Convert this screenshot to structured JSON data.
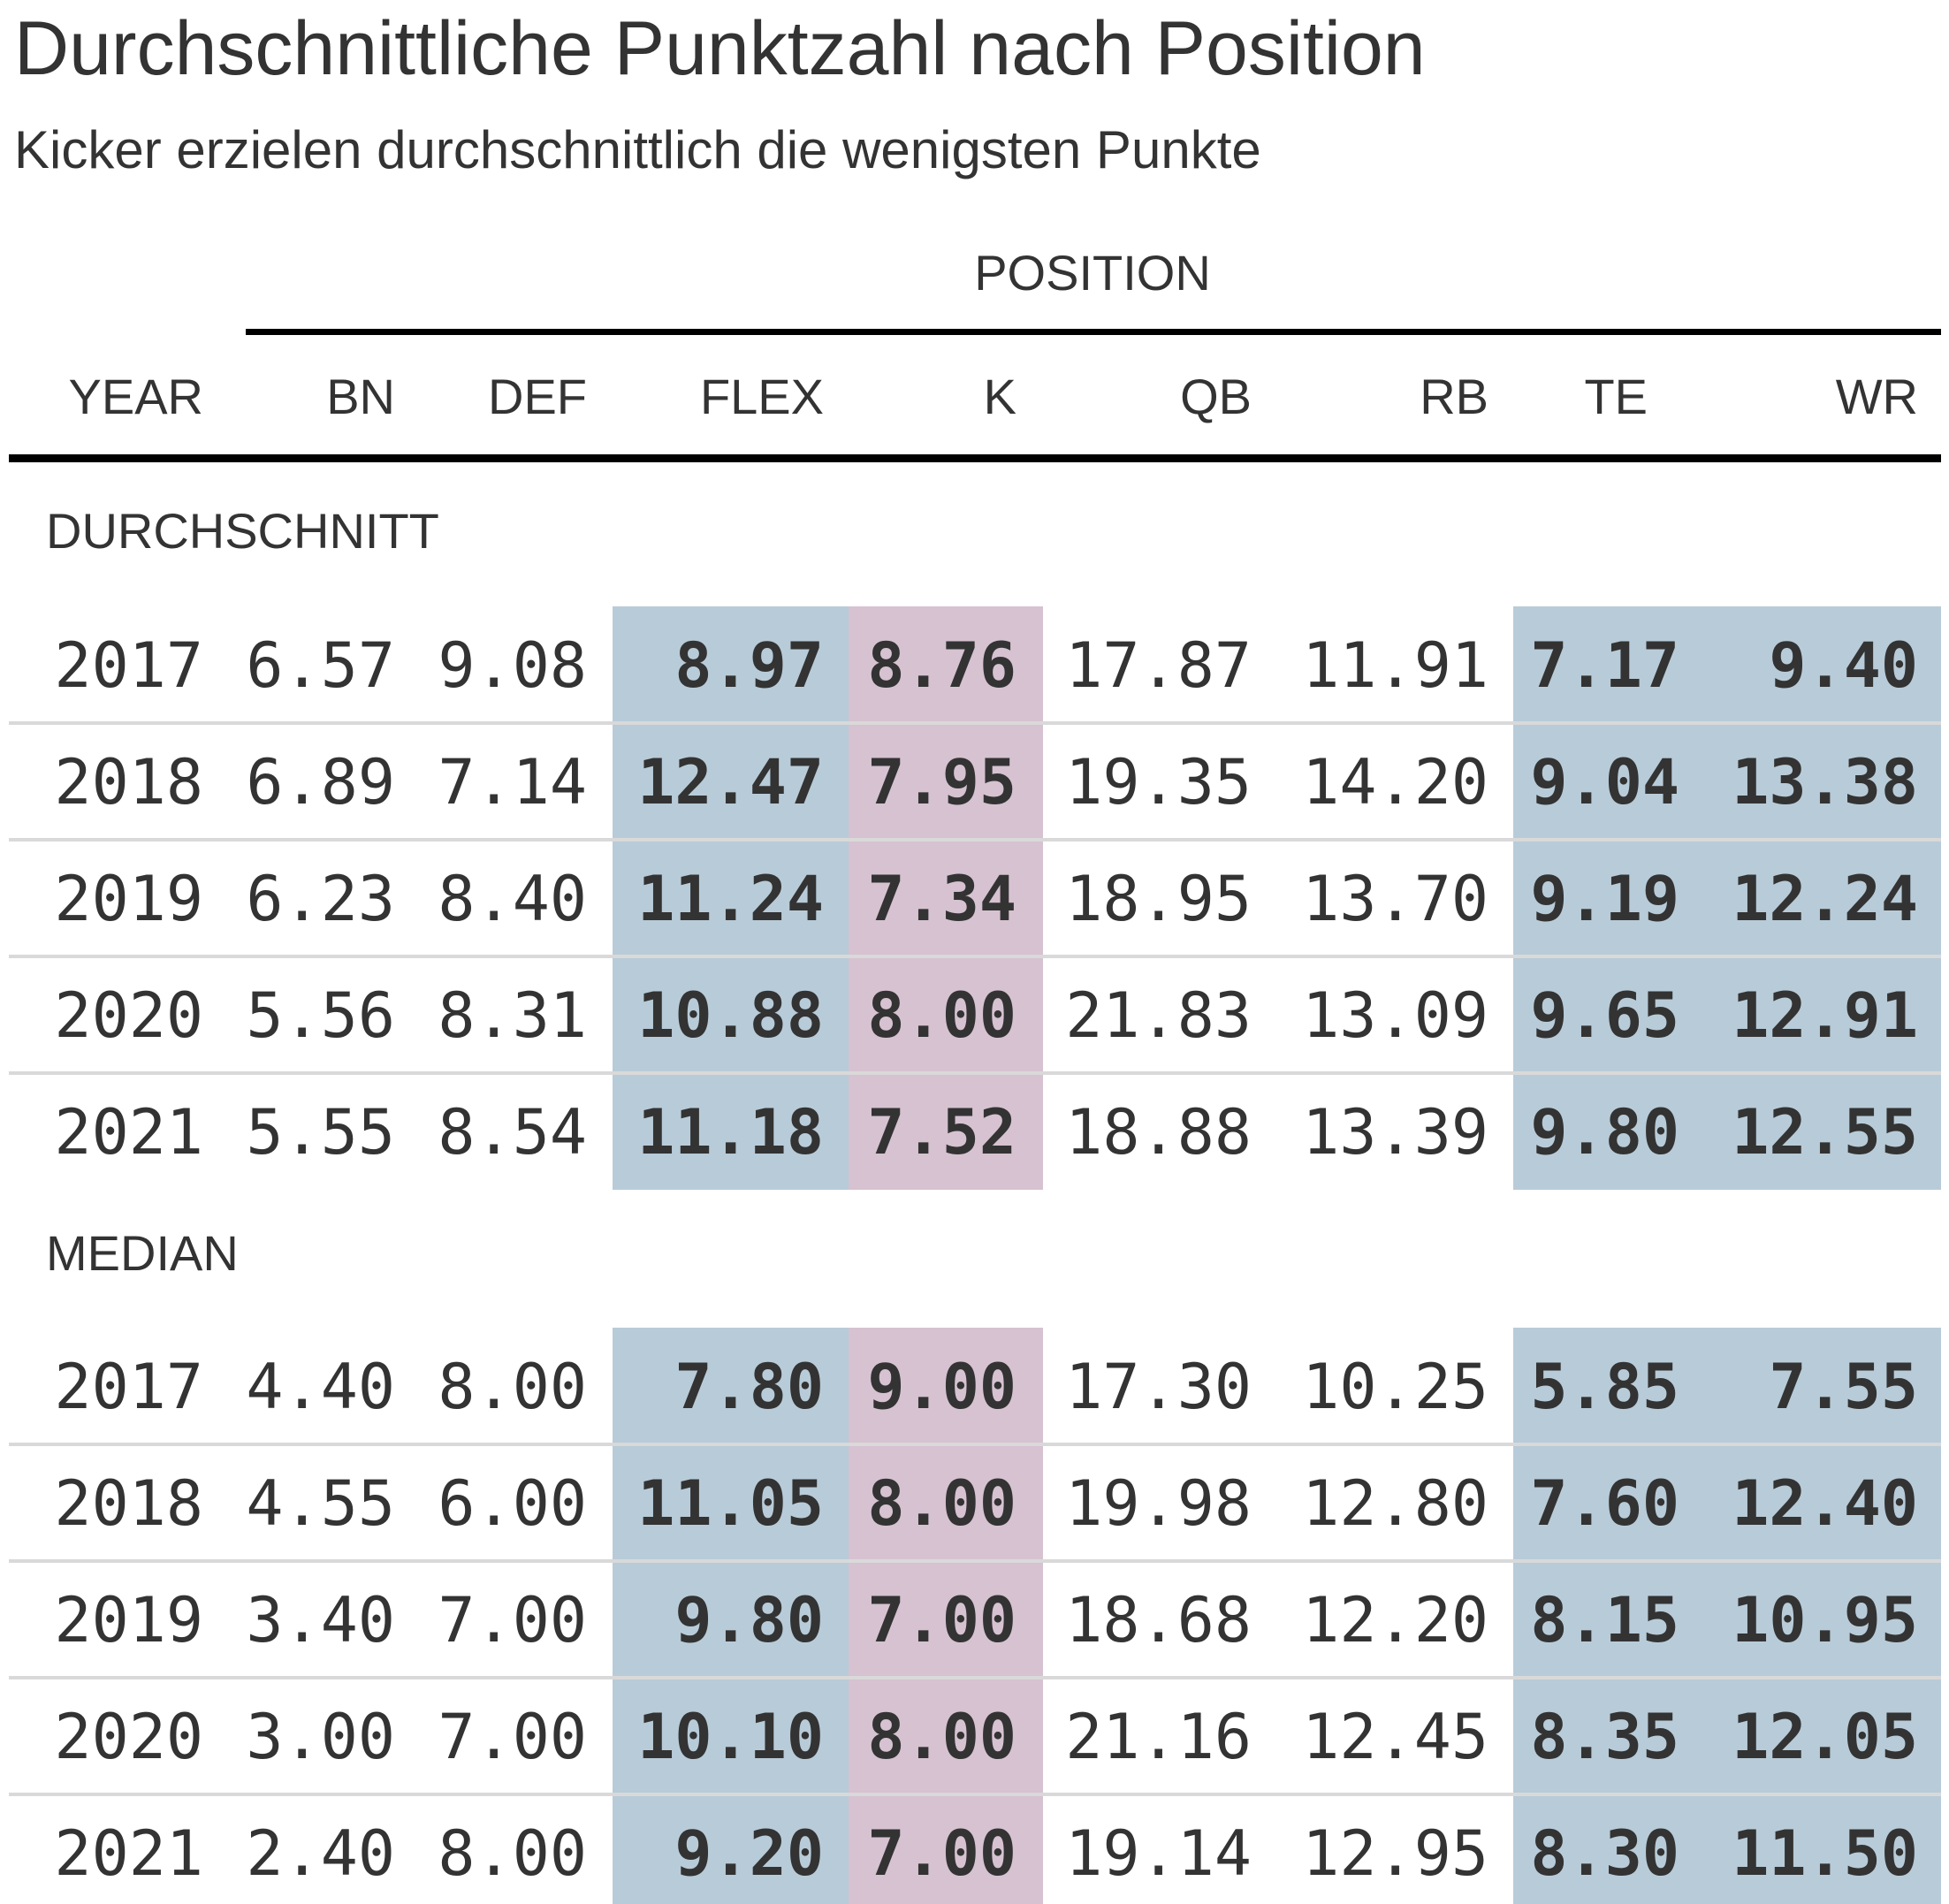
{
  "title": "Durchschnittliche Punktzahl nach Position",
  "subtitle": "Kicker erzielen durchschnittlich die wenigsten Punkte",
  "colors": {
    "text": "#333333",
    "highlight_blue": "#b8cbd8",
    "highlight_pink": "#d6c2d1",
    "divider": "#d9d9d9",
    "rule": "#000000"
  },
  "chart_data": {
    "type": "table",
    "title": "Durchschnittliche Punktzahl nach Position",
    "subtitle": "Kicker erzielen durchschnittlich die wenigsten Punkte",
    "spanner": "POSITION",
    "columns": [
      "YEAR",
      "BN",
      "DEF",
      "FLEX",
      "K",
      "QB",
      "RB",
      "TE",
      "WR"
    ],
    "highlighted_columns": {
      "FLEX": "blue",
      "K": "pink",
      "TE": "blue",
      "WR": "blue"
    },
    "groups": [
      {
        "label": "DURCHSCHNITT",
        "rows": [
          [
            "2017",
            "6.57",
            "9.08",
            "8.97",
            "8.76",
            "17.87",
            "11.91",
            "7.17",
            "9.40"
          ],
          [
            "2018",
            "6.89",
            "7.14",
            "12.47",
            "7.95",
            "19.35",
            "14.20",
            "9.04",
            "13.38"
          ],
          [
            "2019",
            "6.23",
            "8.40",
            "11.24",
            "7.34",
            "18.95",
            "13.70",
            "9.19",
            "12.24"
          ],
          [
            "2020",
            "5.56",
            "8.31",
            "10.88",
            "8.00",
            "21.83",
            "13.09",
            "9.65",
            "12.91"
          ],
          [
            "2021",
            "5.55",
            "8.54",
            "11.18",
            "7.52",
            "18.88",
            "13.39",
            "9.80",
            "12.55"
          ]
        ]
      },
      {
        "label": "MEDIAN",
        "rows": [
          [
            "2017",
            "4.40",
            "8.00",
            "7.80",
            "9.00",
            "17.30",
            "10.25",
            "5.85",
            "7.55"
          ],
          [
            "2018",
            "4.55",
            "6.00",
            "11.05",
            "8.00",
            "19.98",
            "12.80",
            "7.60",
            "12.40"
          ],
          [
            "2019",
            "3.40",
            "7.00",
            "9.80",
            "7.00",
            "18.68",
            "12.20",
            "8.15",
            "10.95"
          ],
          [
            "2020",
            "3.00",
            "7.00",
            "10.10",
            "8.00",
            "21.16",
            "12.45",
            "8.35",
            "12.05"
          ],
          [
            "2021",
            "2.40",
            "8.00",
            "9.20",
            "7.00",
            "19.14",
            "12.95",
            "8.30",
            "11.50"
          ]
        ]
      }
    ]
  }
}
